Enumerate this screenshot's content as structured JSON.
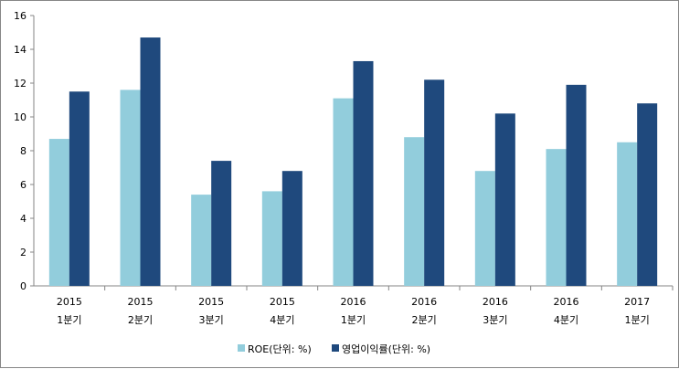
{
  "chart_data": {
    "type": "bar",
    "title": "",
    "xlabel": "",
    "ylabel": "",
    "ylim": [
      0,
      16
    ],
    "yticks": [
      0,
      2,
      4,
      6,
      8,
      10,
      12,
      14,
      16
    ],
    "grid": false,
    "legend_position": "bottom",
    "categories": [
      [
        "2015",
        "1분기"
      ],
      [
        "2015",
        "2분기"
      ],
      [
        "2015",
        "3분기"
      ],
      [
        "2015",
        "4분기"
      ],
      [
        "2016",
        "1분기"
      ],
      [
        "2016",
        "2분기"
      ],
      [
        "2016",
        "3분기"
      ],
      [
        "2016",
        "4분기"
      ],
      [
        "2017",
        "1분기"
      ]
    ],
    "series": [
      {
        "name": "ROE(단위: %)",
        "color": "#92CDDC",
        "values": [
          8.7,
          11.6,
          5.4,
          5.6,
          11.1,
          8.8,
          6.8,
          8.1,
          8.5
        ]
      },
      {
        "name": "영업이익률(단위: %)",
        "color": "#1F497D",
        "values": [
          11.5,
          14.7,
          7.4,
          6.8,
          13.3,
          12.2,
          10.2,
          11.9,
          10.8
        ]
      }
    ]
  }
}
